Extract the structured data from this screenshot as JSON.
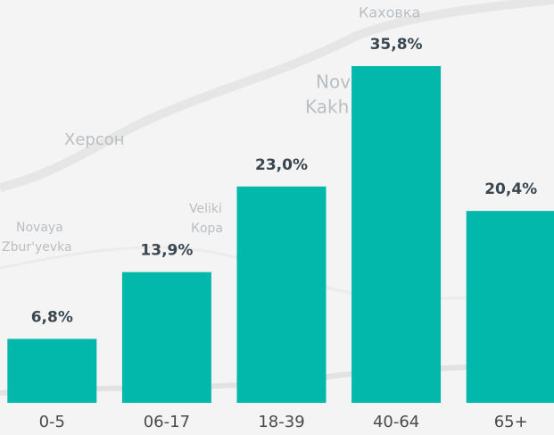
{
  "chart_data": {
    "type": "bar",
    "categories": [
      "0-5",
      "06-17",
      "18-39",
      "40-64",
      "65+"
    ],
    "values": [
      6.8,
      13.9,
      23.0,
      35.8,
      20.4
    ],
    "value_labels": [
      "6,8%",
      "13,9%",
      "23,0%",
      "35,8%",
      "20,4%"
    ],
    "color": "#01b8aa"
  },
  "map_labels": [
    "Каховка",
    "Nov",
    "Kakh",
    "Херсон",
    "Novaya",
    "Zbur'yevka",
    "Veliki",
    "Кора"
  ]
}
